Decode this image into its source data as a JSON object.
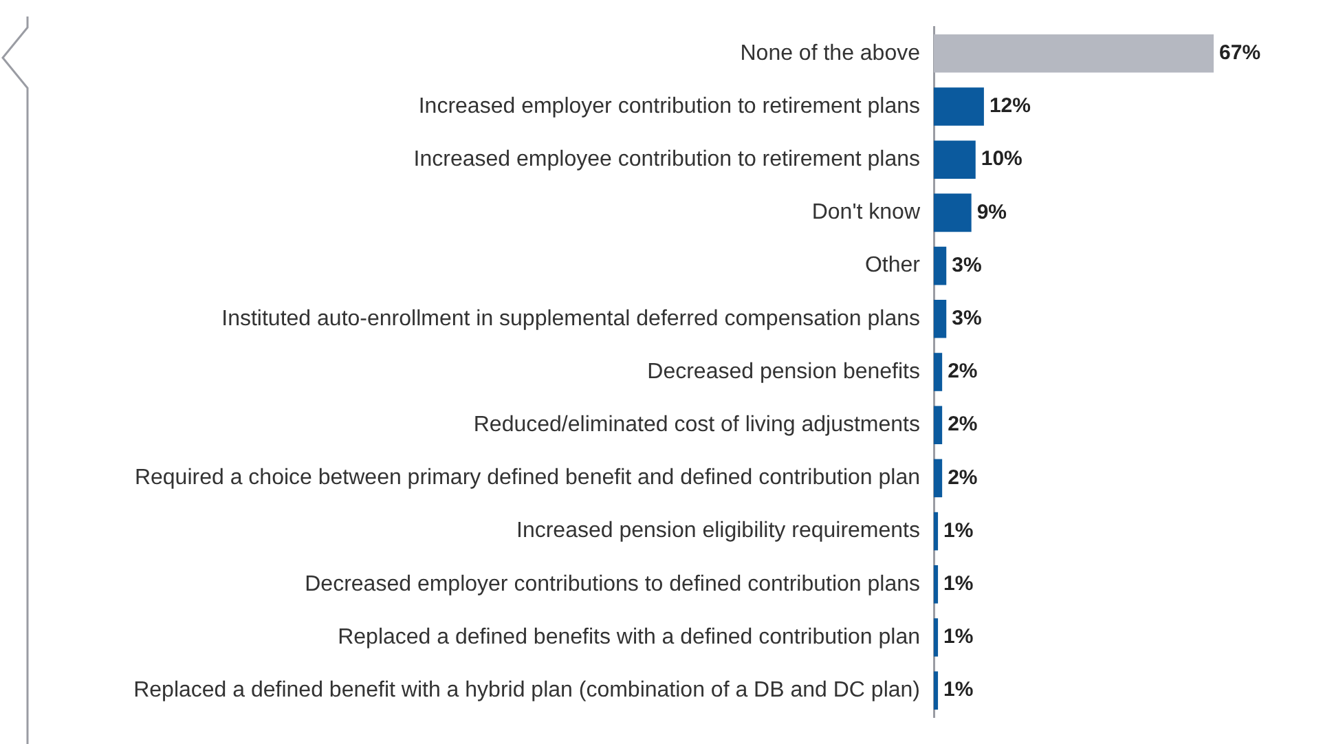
{
  "chart_data": {
    "type": "bar",
    "orientation": "horizontal",
    "categories": [
      "None of the above",
      "Increased employer contribution to retirement plans",
      "Increased employee contribution to retirement plans",
      "Don't know",
      "Other",
      "Instituted auto-enrollment in supplemental deferred compensation plans",
      "Decreased pension benefits",
      "Reduced/eliminated cost of living adjustments",
      "Required a choice between primary defined benefit and defined contribution plan",
      "Increased pension eligibility requirements",
      "Decreased employer contributions to defined contribution plans",
      "Replaced a defined benefits with a defined contribution plan",
      "Replaced a defined benefit with a hybrid plan (combination of a DB and DC plan)"
    ],
    "values": [
      67,
      12,
      10,
      9,
      3,
      3,
      2,
      2,
      2,
      1,
      1,
      1,
      1
    ],
    "colors": [
      "#b5b8c1",
      "#0b5a9e",
      "#0b5a9e",
      "#0b5a9e",
      "#0b5a9e",
      "#0b5a9e",
      "#0b5a9e",
      "#0b5a9e",
      "#0b5a9e",
      "#0b5a9e",
      "#0b5a9e",
      "#0b5a9e",
      "#0b5a9e"
    ],
    "value_labels": [
      "67%",
      "12%",
      "10%",
      "9%",
      "3%",
      "3%",
      "2%",
      "2%",
      "2%",
      "1%",
      "1%",
      "1%",
      "1%"
    ],
    "grid": false,
    "legend": false,
    "tick_labels": "y"
  }
}
